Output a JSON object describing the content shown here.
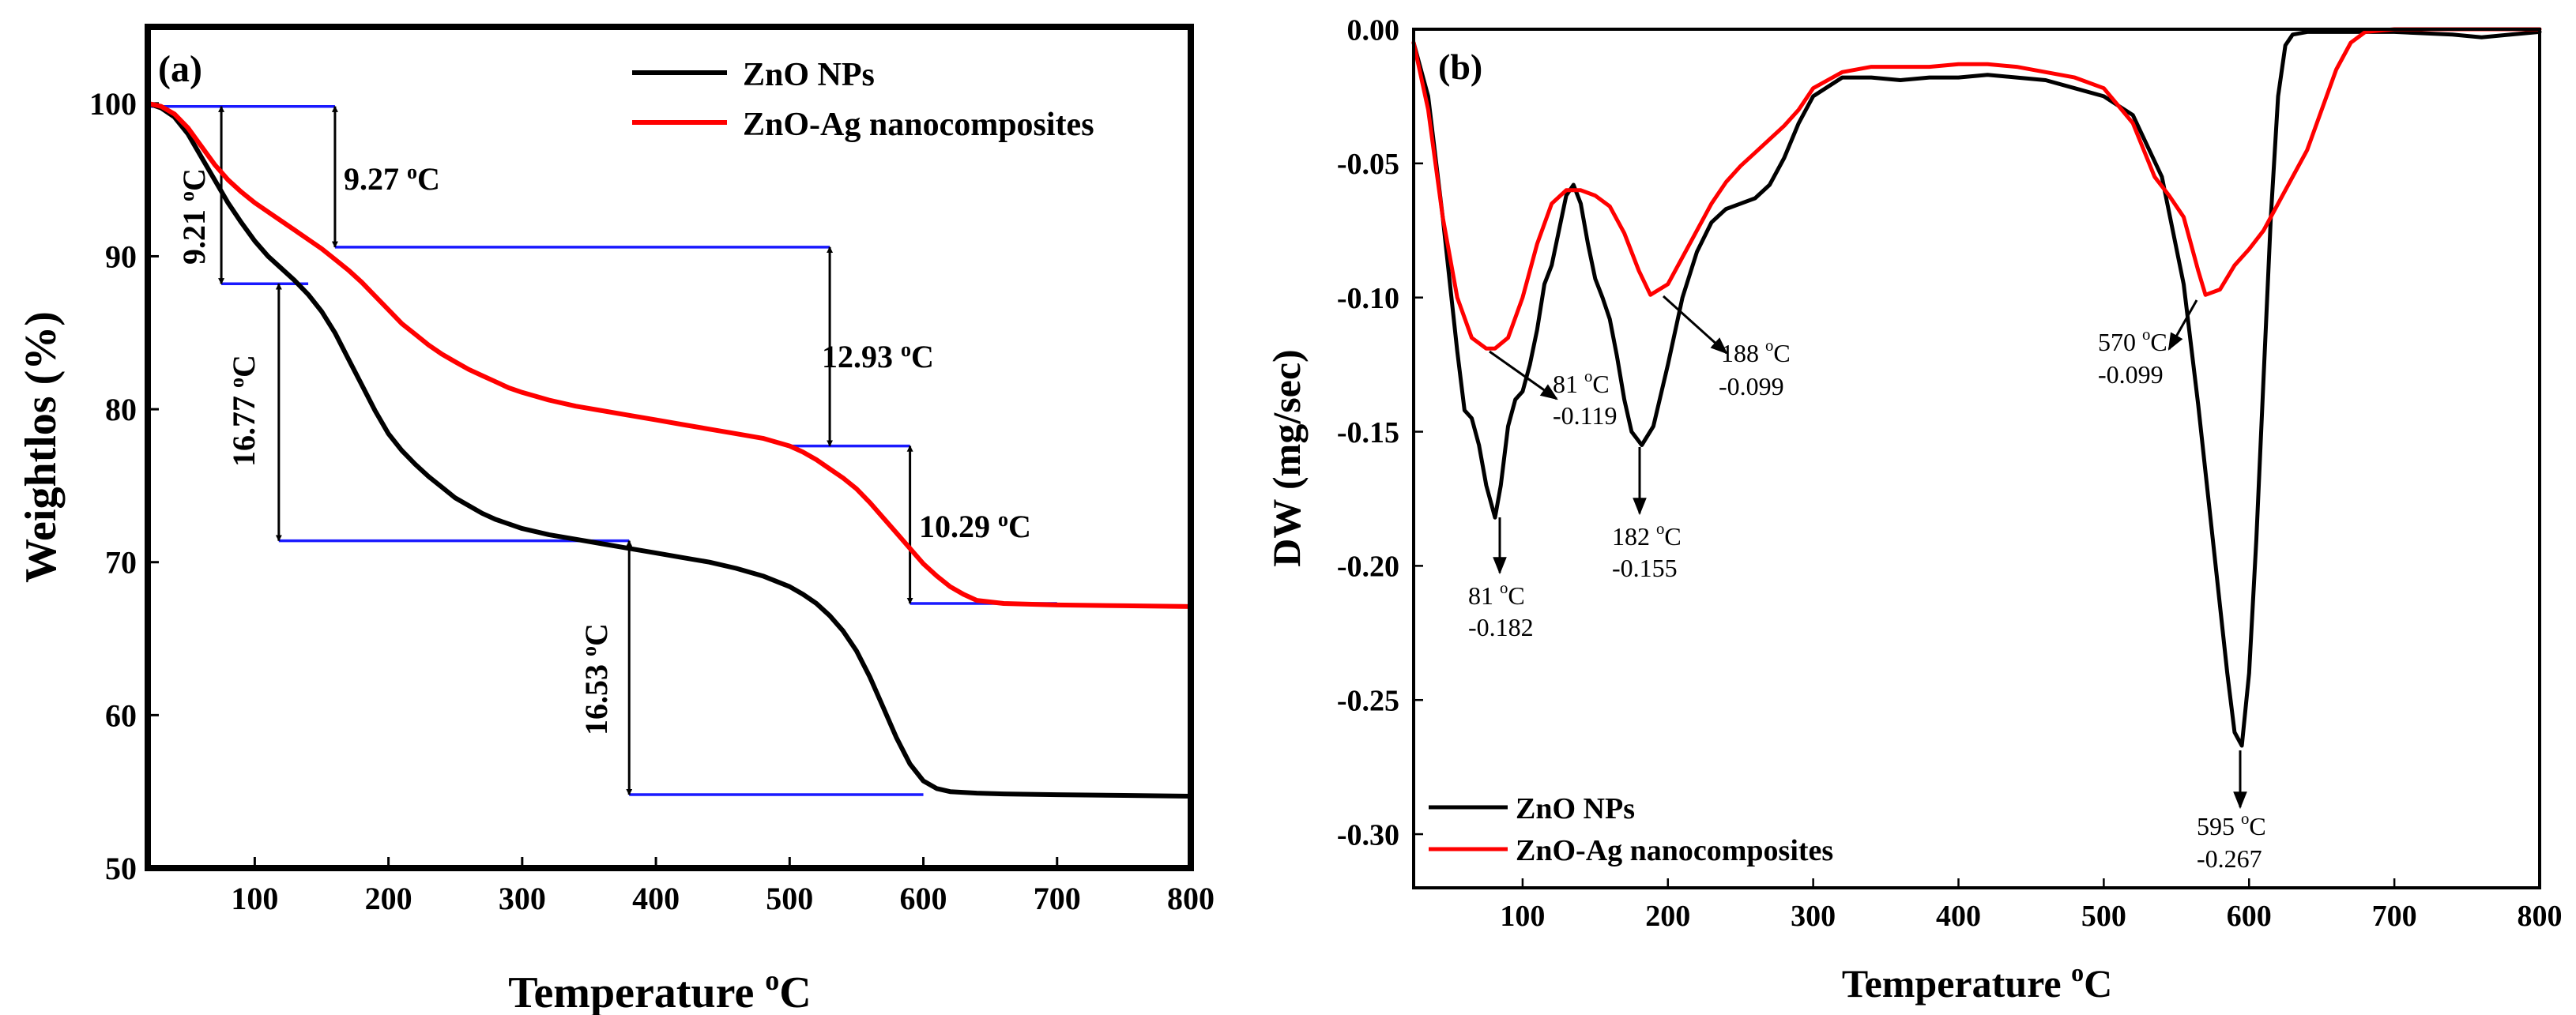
{
  "chart_data": [
    {
      "type": "line",
      "panel_label": "(a)",
      "xlabel": "Temperature",
      "xlabel_unit": "oC",
      "ylabel": "Weightlos (%)",
      "xlim": [
        20,
        800
      ],
      "ylim": [
        50,
        105
      ],
      "xticks": [
        100,
        200,
        300,
        400,
        500,
        600,
        700,
        800
      ],
      "yticks": [
        50,
        60,
        70,
        80,
        90,
        100
      ],
      "legend_position": "top-right",
      "series": [
        {
          "name": "ZnO NPs",
          "color": "#000000",
          "x": [
            20,
            30,
            40,
            50,
            60,
            70,
            80,
            90,
            100,
            110,
            120,
            130,
            140,
            150,
            160,
            170,
            180,
            190,
            200,
            210,
            220,
            230,
            240,
            250,
            260,
            270,
            280,
            290,
            300,
            320,
            340,
            360,
            380,
            400,
            420,
            440,
            460,
            480,
            500,
            510,
            520,
            530,
            540,
            550,
            560,
            570,
            580,
            590,
            600,
            610,
            620,
            640,
            660,
            700,
            750,
            800
          ],
          "y": [
            100,
            99.7,
            99.1,
            98.0,
            96.5,
            95.0,
            93.5,
            92.2,
            91.0,
            90.0,
            89.2,
            88.4,
            87.5,
            86.4,
            85.0,
            83.3,
            81.6,
            79.9,
            78.4,
            77.3,
            76.4,
            75.6,
            74.9,
            74.2,
            73.7,
            73.2,
            72.8,
            72.5,
            72.2,
            71.8,
            71.5,
            71.2,
            70.9,
            70.6,
            70.3,
            70.0,
            69.6,
            69.1,
            68.4,
            67.9,
            67.3,
            66.5,
            65.5,
            64.2,
            62.5,
            60.5,
            58.5,
            56.8,
            55.7,
            55.2,
            55.0,
            54.9,
            54.85,
            54.8,
            54.75,
            54.7
          ]
        },
        {
          "name": "ZnO-Ag nanocomposites",
          "color": "#ff0000",
          "x": [
            20,
            30,
            40,
            50,
            60,
            70,
            80,
            90,
            100,
            110,
            120,
            130,
            140,
            150,
            160,
            170,
            180,
            190,
            200,
            210,
            220,
            230,
            240,
            250,
            260,
            270,
            280,
            290,
            300,
            320,
            340,
            360,
            380,
            400,
            420,
            440,
            460,
            480,
            500,
            510,
            520,
            530,
            540,
            550,
            560,
            570,
            580,
            590,
            600,
            610,
            620,
            630,
            640,
            660,
            700,
            750,
            800
          ],
          "y": [
            100,
            99.8,
            99.3,
            98.4,
            97.2,
            96.0,
            95.0,
            94.2,
            93.5,
            92.9,
            92.3,
            91.7,
            91.1,
            90.5,
            89.8,
            89.1,
            88.3,
            87.4,
            86.5,
            85.6,
            84.9,
            84.2,
            83.6,
            83.1,
            82.6,
            82.2,
            81.8,
            81.4,
            81.1,
            80.6,
            80.2,
            79.9,
            79.6,
            79.3,
            79.0,
            78.7,
            78.4,
            78.1,
            77.6,
            77.2,
            76.7,
            76.1,
            75.5,
            74.8,
            73.9,
            72.9,
            71.9,
            70.9,
            69.9,
            69.1,
            68.4,
            67.9,
            67.5,
            67.3,
            67.2,
            67.15,
            67.1
          ]
        }
      ],
      "annotations": [
        "9.27 oC",
        "9.21 oC",
        "16.77 oC",
        "12.93 oC",
        "10.29 oC",
        "16.53 oC"
      ]
    },
    {
      "type": "line",
      "panel_label": "(b)",
      "xlabel": "Temperature",
      "xlabel_unit": "oC",
      "ylabel": "DW (mg/sec)",
      "xlim": [
        25,
        800
      ],
      "ylim": [
        -0.32,
        0.0
      ],
      "xticks": [
        100,
        200,
        300,
        400,
        500,
        600,
        700,
        800
      ],
      "yticks": [
        0.0,
        -0.05,
        -0.1,
        -0.15,
        -0.2,
        -0.25,
        -0.3
      ],
      "ytick_labels": [
        "0.00",
        "-0.05",
        "-0.10",
        "-0.15",
        "-0.20",
        "-0.25",
        "-0.30"
      ],
      "legend_position": "bottom-left",
      "series": [
        {
          "name": "ZnO NPs",
          "color": "#000000",
          "x": [
            25,
            35,
            45,
            55,
            60,
            65,
            70,
            75,
            81,
            85,
            90,
            95,
            100,
            105,
            110,
            115,
            120,
            125,
            130,
            135,
            140,
            145,
            150,
            155,
            160,
            165,
            170,
            175,
            182,
            190,
            200,
            210,
            220,
            230,
            240,
            250,
            260,
            270,
            280,
            290,
            300,
            320,
            340,
            360,
            380,
            400,
            420,
            440,
            460,
            480,
            500,
            520,
            540,
            555,
            565,
            575,
            585,
            590,
            595,
            600,
            605,
            610,
            615,
            620,
            625,
            630,
            640,
            660,
            700,
            740,
            760,
            780,
            800
          ],
          "y": [
            -0.005,
            -0.025,
            -0.07,
            -0.12,
            -0.142,
            -0.145,
            -0.155,
            -0.17,
            -0.182,
            -0.17,
            -0.148,
            -0.138,
            -0.135,
            -0.125,
            -0.112,
            -0.095,
            -0.088,
            -0.075,
            -0.062,
            -0.058,
            -0.065,
            -0.08,
            -0.093,
            -0.1,
            -0.108,
            -0.122,
            -0.138,
            -0.15,
            -0.155,
            -0.148,
            -0.125,
            -0.1,
            -0.083,
            -0.072,
            -0.067,
            -0.065,
            -0.063,
            -0.058,
            -0.048,
            -0.035,
            -0.025,
            -0.018,
            -0.018,
            -0.019,
            -0.018,
            -0.018,
            -0.017,
            -0.018,
            -0.019,
            -0.022,
            -0.025,
            -0.032,
            -0.055,
            -0.095,
            -0.14,
            -0.19,
            -0.24,
            -0.262,
            -0.267,
            -0.24,
            -0.19,
            -0.13,
            -0.07,
            -0.025,
            -0.006,
            -0.002,
            -0.001,
            -0.001,
            -0.001,
            -0.002,
            -0.003,
            -0.002,
            -0.001
          ]
        },
        {
          "name": "ZnO-Ag nanocomposites",
          "color": "#ff0000",
          "x": [
            25,
            35,
            45,
            55,
            65,
            75,
            81,
            90,
            100,
            110,
            120,
            130,
            140,
            150,
            160,
            170,
            180,
            188,
            200,
            210,
            220,
            230,
            240,
            250,
            260,
            270,
            280,
            290,
            300,
            320,
            340,
            360,
            380,
            400,
            420,
            440,
            460,
            480,
            500,
            520,
            535,
            545,
            555,
            565,
            570,
            580,
            590,
            600,
            610,
            620,
            630,
            640,
            650,
            660,
            670,
            680,
            700,
            740,
            800
          ],
          "y": [
            -0.005,
            -0.03,
            -0.07,
            -0.1,
            -0.115,
            -0.119,
            -0.119,
            -0.115,
            -0.1,
            -0.08,
            -0.065,
            -0.06,
            -0.06,
            -0.062,
            -0.066,
            -0.076,
            -0.09,
            -0.099,
            -0.095,
            -0.085,
            -0.075,
            -0.065,
            -0.057,
            -0.051,
            -0.046,
            -0.041,
            -0.036,
            -0.03,
            -0.022,
            -0.016,
            -0.014,
            -0.014,
            -0.014,
            -0.013,
            -0.013,
            -0.014,
            -0.016,
            -0.018,
            -0.022,
            -0.035,
            -0.055,
            -0.062,
            -0.07,
            -0.09,
            -0.099,
            -0.097,
            -0.088,
            -0.082,
            -0.075,
            -0.065,
            -0.055,
            -0.045,
            -0.03,
            -0.015,
            -0.005,
            -0.001,
            0.0,
            0.0,
            0.0
          ]
        }
      ],
      "annotations": [
        "81 oC",
        "-0.119",
        "188 oC",
        "-0.099",
        "182 oC",
        "-0.155",
        "81 oC",
        "-0.182",
        "570 oC",
        "-0.099",
        "595 oC",
        "-0.267"
      ]
    }
  ]
}
